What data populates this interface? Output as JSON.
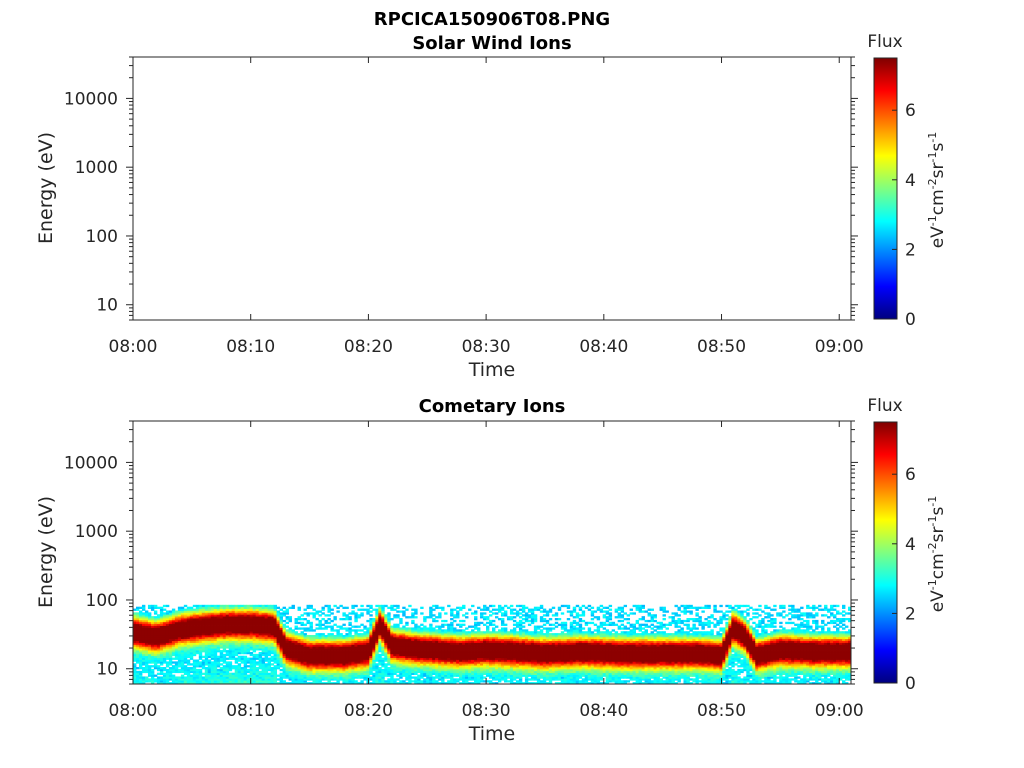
{
  "figure": {
    "title": "RPCICA150906T08.PNG"
  },
  "chart_data": [
    {
      "type": "heatmap",
      "title": "Solar Wind Ions",
      "xlabel": "Time",
      "ylabel": "Energy (eV)",
      "x_tick_labels": [
        "08:00",
        "08:10",
        "08:20",
        "08:30",
        "08:40",
        "08:50",
        "09:00"
      ],
      "xlim": [
        "08:00",
        "09:01"
      ],
      "y_scale": "log",
      "y_tick_labels": [
        "10",
        "100",
        "1000",
        "10000"
      ],
      "ylim": [
        6,
        40000
      ],
      "colorbar": {
        "label": "Flux",
        "unit_label": "eV-1cm-2sr-1s-1",
        "ticks": [
          "0",
          "2",
          "4",
          "6"
        ],
        "range": [
          0,
          7.5
        ],
        "colormap": "jet"
      },
      "data": []
    },
    {
      "type": "heatmap",
      "title": "Cometary Ions",
      "xlabel": "Time",
      "ylabel": "Energy (eV)",
      "x_tick_labels": [
        "08:00",
        "08:10",
        "08:20",
        "08:30",
        "08:40",
        "08:50",
        "09:00"
      ],
      "xlim": [
        "08:00",
        "09:01"
      ],
      "y_scale": "log",
      "y_tick_labels": [
        "10",
        "100",
        "1000",
        "10000"
      ],
      "ylim": [
        6,
        40000
      ],
      "colorbar": {
        "label": "Flux",
        "unit_label": "eV-1cm-2sr-1s-1",
        "ticks": [
          "0",
          "2",
          "4",
          "6"
        ],
        "range": [
          0,
          7.5
        ],
        "colormap": "jet"
      },
      "peak_energy_eV": {
        "time": [
          "08:00",
          "08:02",
          "08:04",
          "08:06",
          "08:08",
          "08:10",
          "08:12",
          "08:13",
          "08:15",
          "08:18",
          "08:20",
          "08:21",
          "08:22",
          "08:24",
          "08:28",
          "08:30",
          "08:33",
          "08:35",
          "08:38",
          "08:42",
          "08:45",
          "08:48",
          "08:50",
          "08:51",
          "08:52",
          "08:53",
          "08:55",
          "08:58",
          "09:00",
          "09:01"
        ],
        "energy": [
          35,
          30,
          38,
          42,
          45,
          45,
          42,
          20,
          16,
          16,
          18,
          45,
          22,
          20,
          18,
          19,
          18,
          17,
          18,
          17,
          17,
          17,
          16,
          40,
          30,
          16,
          19,
          18,
          18,
          18
        ],
        "peak_flux": 7.3
      },
      "energy_range_eV": [
        6,
        85
      ]
    }
  ]
}
